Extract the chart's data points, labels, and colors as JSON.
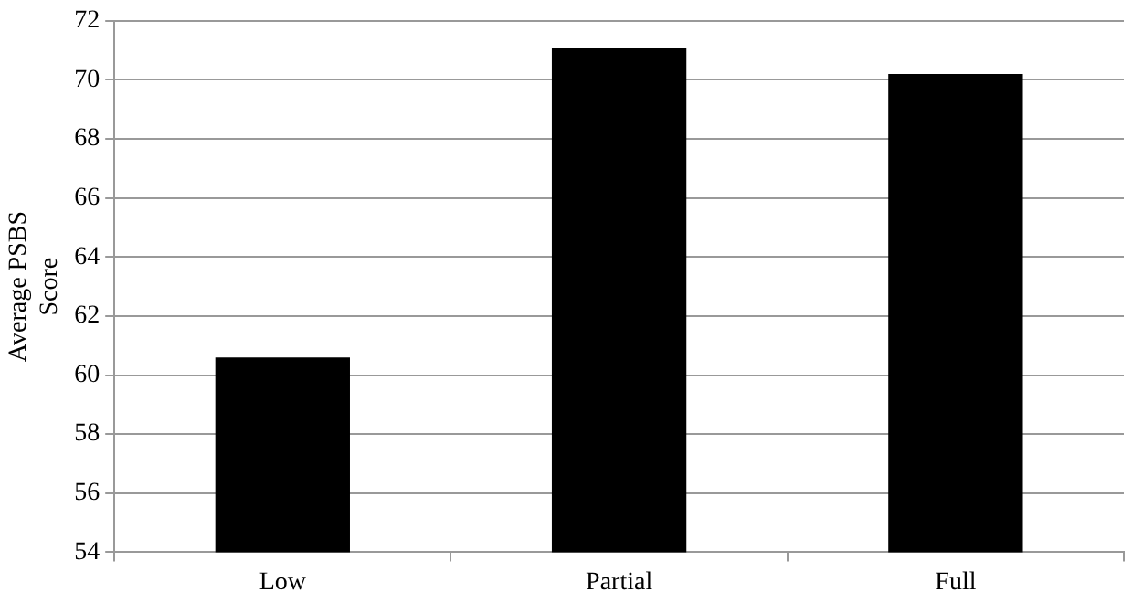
{
  "chart_data": {
    "type": "bar",
    "ylabel": "Average PSBS Score",
    "categories": [
      "Low",
      "Partial",
      "Full"
    ],
    "values": [
      60.6,
      71.1,
      70.2
    ],
    "color": "#000000",
    "ylim": [
      54,
      72
    ],
    "yticks": [
      54,
      56,
      58,
      60,
      62,
      64,
      66,
      68,
      70,
      72
    ],
    "grid": "y",
    "legend": false
  }
}
